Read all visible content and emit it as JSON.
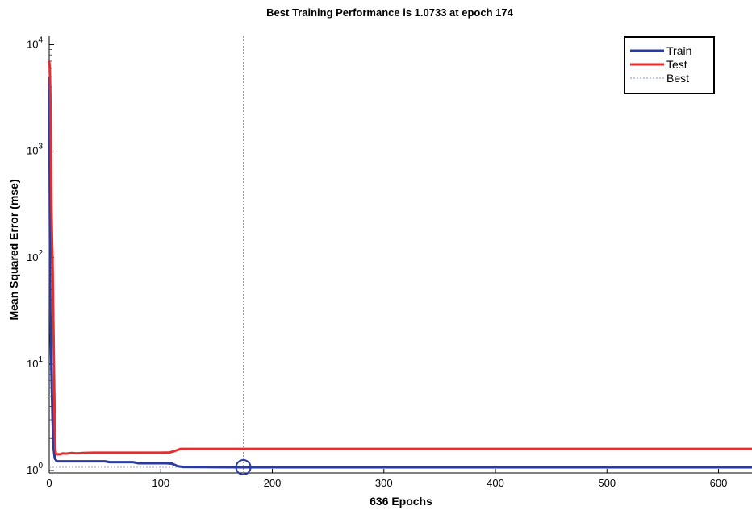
{
  "chart_data": {
    "type": "line",
    "title": "Best Training Performance is 1.0733 at epoch 174",
    "xlabel": "636 Epochs",
    "ylabel": "Mean Squared Error (mse)",
    "xlim": [
      0,
      630
    ],
    "ylim": [
      0.95,
      12000
    ],
    "yscale": "log",
    "xticks": [
      0,
      100,
      200,
      300,
      400,
      500,
      600
    ],
    "yticks": [
      {
        "value": 1,
        "base": "10",
        "exp": "0"
      },
      {
        "value": 10,
        "base": "10",
        "exp": "1"
      },
      {
        "value": 100,
        "base": "10",
        "exp": "2"
      },
      {
        "value": 1000,
        "base": "10",
        "exp": "3"
      },
      {
        "value": 10000,
        "base": "10",
        "exp": "4"
      }
    ],
    "grid": false,
    "legend_position": "top-right",
    "series": [
      {
        "name": "Train",
        "color": "#2b3aa0",
        "style": "solid",
        "x": [
          0,
          1,
          2,
          3,
          4,
          5,
          6,
          7,
          10,
          20,
          30,
          50,
          54,
          75,
          80,
          100,
          105,
          110,
          115,
          120,
          150,
          174,
          200,
          300,
          400,
          500,
          600,
          630
        ],
        "y": [
          5000,
          30,
          8,
          3,
          1.6,
          1.3,
          1.25,
          1.22,
          1.22,
          1.22,
          1.22,
          1.22,
          1.2,
          1.2,
          1.17,
          1.17,
          1.17,
          1.16,
          1.1,
          1.08,
          1.075,
          1.0733,
          1.0733,
          1.0733,
          1.0733,
          1.0733,
          1.0733,
          1.0733
        ]
      },
      {
        "name": "Test",
        "color": "#e03030",
        "style": "solid",
        "x": [
          0,
          0.5,
          1,
          1.5,
          2,
          2.5,
          3,
          3.5,
          4,
          4.5,
          5,
          5.5,
          6,
          7,
          10,
          12,
          15,
          20,
          25,
          30,
          40,
          50,
          60,
          70,
          80,
          90,
          100,
          108,
          112,
          115,
          118,
          120,
          200,
          300,
          400,
          500,
          600,
          630
        ],
        "y": [
          7000,
          6000,
          3500,
          1000,
          300,
          150,
          100,
          40,
          16,
          6,
          2.5,
          1.6,
          1.45,
          1.42,
          1.42,
          1.45,
          1.44,
          1.46,
          1.45,
          1.46,
          1.47,
          1.47,
          1.47,
          1.47,
          1.47,
          1.47,
          1.47,
          1.48,
          1.52,
          1.56,
          1.6,
          1.6,
          1.6,
          1.6,
          1.6,
          1.6,
          1.6,
          1.6
        ]
      },
      {
        "name": "Best",
        "color": "#8a8ed8",
        "style": "dotted"
      }
    ],
    "best": {
      "epoch": 174,
      "value": 1.0733
    }
  }
}
